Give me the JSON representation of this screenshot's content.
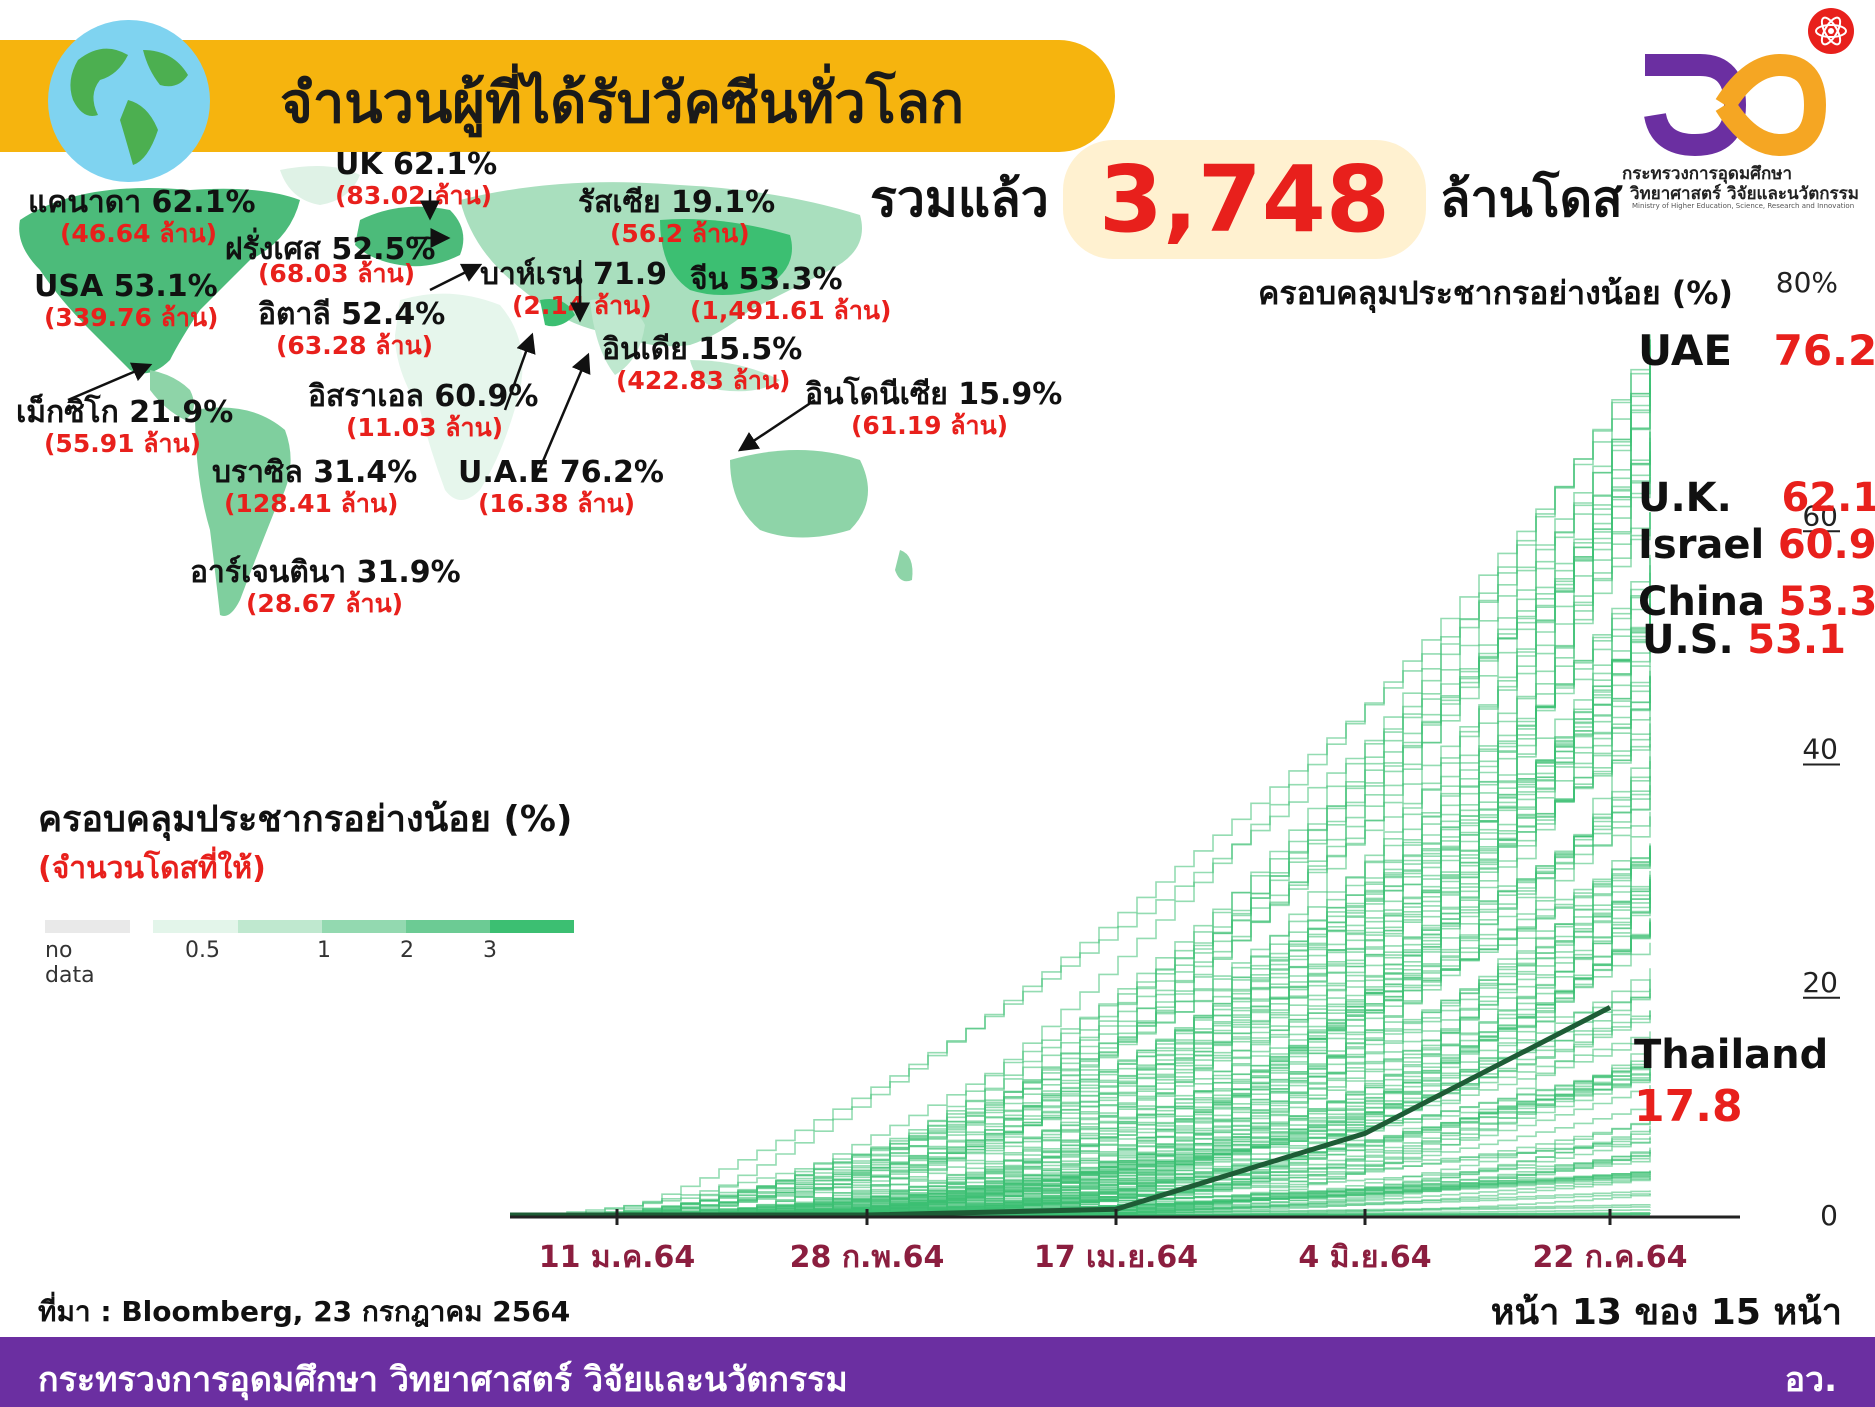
{
  "header": {
    "title": "จำนวนผู้ที่ได้รับวัคซีนทั่วโลก",
    "total_prefix": "รวมแล้ว",
    "total_value": "3,748",
    "total_suffix": "ล้านโดส"
  },
  "logo": {
    "line1": "กระทรวงการอุดมศึกษา",
    "line2": "วิทยาศาสตร์ วิจัยและนวัตกรรม",
    "line3": "Ministry of Higher Education, Science, Research and Innovation",
    "colors": {
      "orange": "#f5a623",
      "purple": "#6b2fa1",
      "red": "#e8201c"
    }
  },
  "map_labels": [
    {
      "key": "uk",
      "name": "UK 62.1%",
      "sub": "(83.02 ล้าน)"
    },
    {
      "key": "canada",
      "name": "แคนาดา 62.1%",
      "sub": "(46.64 ล้าน)"
    },
    {
      "key": "russia",
      "name": "รัสเซีย 19.1%",
      "sub": "(56.2 ล้าน)"
    },
    {
      "key": "france",
      "name": "ฝรั่งเศส 52.5%",
      "sub": "(68.03 ล้าน)"
    },
    {
      "key": "usa",
      "name": "USA 53.1%",
      "sub": "(339.76 ล้าน)"
    },
    {
      "key": "bahrain",
      "name": "บาห์เรน 71.9",
      "sub": "(2.14 ล้าน)"
    },
    {
      "key": "china",
      "name": "จีน 53.3%",
      "sub": "(1,491.61 ล้าน)"
    },
    {
      "key": "italy",
      "name": "อิตาลี 52.4%",
      "sub": "(63.28 ล้าน)"
    },
    {
      "key": "india",
      "name": "อินเดีย 15.5%",
      "sub": "(422.83 ล้าน)"
    },
    {
      "key": "israel",
      "name": "อิสราเอล 60.9%",
      "sub": "(11.03 ล้าน)"
    },
    {
      "key": "indonesia",
      "name": "อินโดนีเซีย 15.9%",
      "sub": "(61.19 ล้าน)"
    },
    {
      "key": "mexico",
      "name": "เม็กซิโก 21.9%",
      "sub": "(55.91 ล้าน)"
    },
    {
      "key": "brazil",
      "name": "บราซิล 31.4%",
      "sub": "(128.41 ล้าน)"
    },
    {
      "key": "uae",
      "name": "U.A.E 76.2%",
      "sub": "(16.38 ล้าน)"
    },
    {
      "key": "argentina",
      "name": "อาร์เจนตินา 31.9%",
      "sub": "(28.67 ล้าน)"
    }
  ],
  "legend": {
    "title": "ครอบคลุมประชากรอย่างน้อย (%)",
    "subtitle": "(จำนวนโดสที่ให้)",
    "no_data": "no data",
    "ticks": [
      "0.5",
      "1",
      "2",
      "3"
    ],
    "colors": [
      "#e9e9e9",
      "#e3f5ea",
      "#bfe8cf",
      "#93d9b0",
      "#6ccb94",
      "#3cbf72"
    ]
  },
  "chart_data": {
    "type": "line",
    "title": "ครอบคลุมประชากรอย่างน้อย (%)",
    "x_tick_labels": [
      "11 ม.ค.64",
      "28 ก.พ.64",
      "17 เม.ย.64",
      "4 มิ.ย.64",
      "22 ก.ค.64"
    ],
    "y_tick_labels": [
      "0",
      "20",
      "40",
      "60",
      "80%"
    ],
    "ylim": [
      0,
      80
    ],
    "highlight_series": {
      "name": "Thailand",
      "x": [
        "11 ม.ค.64",
        "28 ก.พ.64",
        "17 เม.ย.64",
        "4 มิ.ย.64",
        "22 ก.ค.64"
      ],
      "y": [
        0,
        0,
        0.5,
        7,
        17.8
      ]
    },
    "background_series_color": "#3cbf72",
    "highlight_color": "#1e5c36",
    "callouts": [
      {
        "name": "UAE",
        "value": "76.2"
      },
      {
        "name": "U.K.",
        "value": "62.1"
      },
      {
        "name": "Israel",
        "value": "60.9"
      },
      {
        "name": "China",
        "value": "53.3"
      },
      {
        "name": "U.S.",
        "value": "53.1"
      },
      {
        "name": "Thailand",
        "value": "17.8"
      }
    ]
  },
  "source": "ที่มา : Bloomberg, 23 กรกฎาคม 2564",
  "page_info": "หน้า 13 ของ 15 หน้า",
  "footer": {
    "ministry": "กระทรวงการอุดมศึกษา วิทยาศาสตร์ วิจัยและนวัตกรรม",
    "abbr": "อว."
  }
}
